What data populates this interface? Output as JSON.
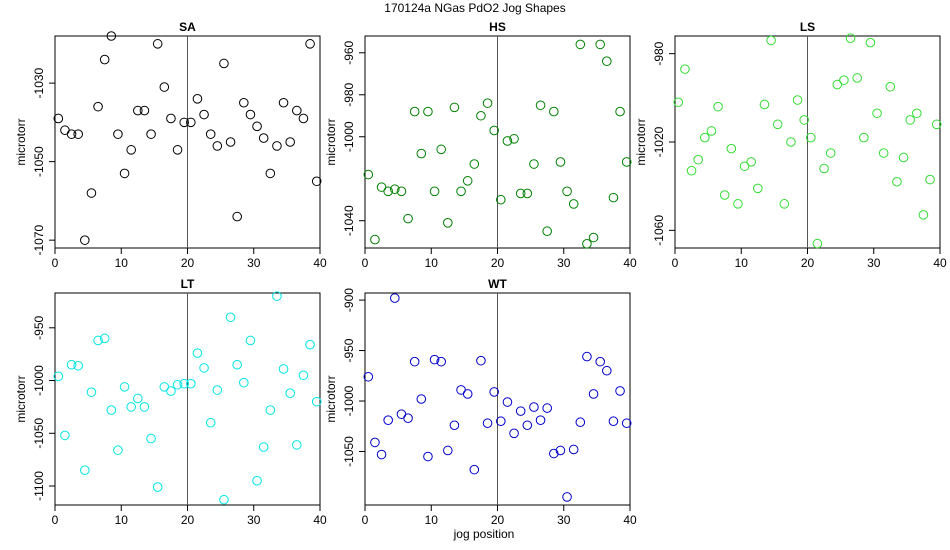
{
  "figure": {
    "title": "170124a   NGas PdO2 Jog Shapes",
    "xlabel": "jog position"
  },
  "chart_data": [
    {
      "type": "scatter",
      "title": "SA",
      "ylabel": "microtorr",
      "xlabel": "",
      "color": "#000000",
      "xlim": [
        0,
        40
      ],
      "ylim": [
        -1072,
        -1018
      ],
      "xticks": [
        0,
        10,
        20,
        30,
        40
      ],
      "yticks": [
        -1030,
        -1050,
        -1070
      ],
      "vline_x": 20,
      "x": [
        0.5,
        1.5,
        2.5,
        3.5,
        4.5,
        5.5,
        6.5,
        7.5,
        8.5,
        9.5,
        10.5,
        11.5,
        12.5,
        13.5,
        14.5,
        15.5,
        16.5,
        17.5,
        18.5,
        19.5,
        20.5,
        21.5,
        22.5,
        23.5,
        24.5,
        25.5,
        26.5,
        27.5,
        28.5,
        29.5,
        30.5,
        31.5,
        32.5,
        33.5,
        34.5,
        35.5,
        36.5,
        37.5,
        38.5,
        39.5
      ],
      "y": [
        -1039,
        -1042,
        -1043,
        -1043,
        -1070,
        -1058,
        -1036,
        -1024,
        -1018,
        -1043,
        -1053,
        -1047,
        -1037,
        -1037,
        -1043,
        -1020,
        -1031,
        -1039,
        -1047,
        -1040,
        -1040,
        -1034,
        -1038,
        -1043,
        -1046,
        -1025,
        -1045,
        -1064,
        -1035,
        -1038,
        -1041,
        -1044,
        -1053,
        -1046,
        -1035,
        -1045,
        -1037,
        -1039,
        -1020,
        -1055
      ]
    },
    {
      "type": "scatter",
      "title": "HS",
      "ylabel": "microtorr",
      "xlabel": "",
      "color": "#008000",
      "xlim": [
        0,
        40
      ],
      "ylim": [
        -1053,
        -952
      ],
      "xticks": [
        0,
        10,
        20,
        30,
        40
      ],
      "yticks": [
        -960,
        -980,
        -1000,
        -1040
      ],
      "vline_x": 20,
      "x": [
        0.5,
        1.5,
        2.5,
        3.5,
        4.5,
        5.5,
        6.5,
        7.5,
        8.5,
        9.5,
        10.5,
        11.5,
        12.5,
        13.5,
        14.5,
        15.5,
        16.5,
        17.5,
        18.5,
        19.5,
        20.5,
        21.5,
        22.5,
        23.5,
        24.5,
        25.5,
        26.5,
        27.5,
        28.5,
        29.5,
        30.5,
        31.5,
        32.5,
        33.5,
        34.5,
        35.5,
        36.5,
        37.5,
        38.5,
        39.5
      ],
      "y": [
        -1018,
        -1049,
        -1024,
        -1026,
        -1025,
        -1026,
        -1039,
        -988,
        -1008,
        -988,
        -1026,
        -1006,
        -1041,
        -986,
        -1026,
        -1021,
        -1013,
        -990,
        -984,
        -997,
        -1030,
        -1002,
        -1001,
        -1027,
        -1027,
        -1013,
        -985,
        -1045,
        -988,
        -1012,
        -1026,
        -1032,
        -956,
        -1051,
        -1048,
        -956,
        -964,
        -1029,
        -988,
        -1012
      ]
    },
    {
      "type": "scatter",
      "title": "LS",
      "ylabel": "microtorr",
      "xlabel": "",
      "color": "#33dd33",
      "xlim": [
        0,
        40
      ],
      "ylim": [
        -1068,
        -972
      ],
      "xticks": [
        0,
        10,
        20,
        30,
        40
      ],
      "yticks": [
        -980,
        -1020,
        -1060
      ],
      "vline_x": 20,
      "x": [
        0.5,
        1.5,
        2.5,
        3.5,
        4.5,
        5.5,
        6.5,
        7.5,
        8.5,
        9.5,
        10.5,
        11.5,
        12.5,
        13.5,
        14.5,
        15.5,
        16.5,
        17.5,
        18.5,
        19.5,
        20.5,
        21.5,
        22.5,
        23.5,
        24.5,
        25.5,
        26.5,
        27.5,
        28.5,
        29.5,
        30.5,
        31.5,
        32.5,
        33.5,
        34.5,
        35.5,
        36.5,
        37.5,
        38.5,
        39.5
      ],
      "y": [
        -1002,
        -987,
        -1033,
        -1028,
        -1018,
        -1015,
        -1004,
        -1044,
        -1023,
        -1048,
        -1031,
        -1029,
        -1041,
        -1003,
        -974,
        -1012,
        -1048,
        -1020,
        -1001,
        -1010,
        -1018,
        -1066,
        -1032,
        -1025,
        -994,
        -992,
        -973,
        -991,
        -1018,
        -975,
        -1007,
        -1025,
        -995,
        -1038,
        -1027,
        -1010,
        -1007,
        -1053,
        -1037,
        -1012
      ]
    },
    {
      "type": "scatter",
      "title": "LT",
      "ylabel": "microtorr",
      "xlabel": "",
      "color": "#00e5e5",
      "xlim": [
        0,
        40
      ],
      "ylim": [
        -1118,
        -917
      ],
      "xticks": [
        0,
        10,
        20,
        30,
        40
      ],
      "yticks": [
        -950,
        -1000,
        -1050,
        -1100
      ],
      "vline_x": 20,
      "x": [
        0.5,
        1.5,
        2.5,
        3.5,
        4.5,
        5.5,
        6.5,
        7.5,
        8.5,
        9.5,
        10.5,
        11.5,
        12.5,
        13.5,
        14.5,
        15.5,
        16.5,
        17.5,
        18.5,
        19.5,
        20.5,
        21.5,
        22.5,
        23.5,
        24.5,
        25.5,
        26.5,
        27.5,
        28.5,
        29.5,
        30.5,
        31.5,
        32.5,
        33.5,
        34.5,
        35.5,
        36.5,
        37.5,
        38.5,
        39.5
      ],
      "y": [
        -996,
        -1052,
        -985,
        -986,
        -1085,
        -1011,
        -962,
        -960,
        -1028,
        -1066,
        -1006,
        -1025,
        -1017,
        -1025,
        -1055,
        -1101,
        -1006,
        -1010,
        -1004,
        -1003,
        -1003,
        -974,
        -988,
        -1040,
        -1009,
        -1113,
        -940,
        -985,
        -1002,
        -962,
        -1095,
        -1063,
        -1028,
        -920,
        -989,
        -1012,
        -1061,
        -995,
        -966,
        -1020
      ]
    },
    {
      "type": "scatter",
      "title": "WT",
      "ylabel": "microtorr",
      "xlabel": "",
      "color": "#0000cc",
      "xlim": [
        0,
        40
      ],
      "ylim": [
        -1103,
        -893
      ],
      "xticks": [
        0,
        10,
        20,
        30,
        40
      ],
      "yticks": [
        -900,
        -950,
        -1000,
        -1050
      ],
      "vline_x": 20,
      "x": [
        0.5,
        1.5,
        2.5,
        3.5,
        4.5,
        5.5,
        6.5,
        7.5,
        8.5,
        9.5,
        10.5,
        11.5,
        12.5,
        13.5,
        14.5,
        15.5,
        16.5,
        17.5,
        18.5,
        19.5,
        20.5,
        21.5,
        22.5,
        23.5,
        24.5,
        25.5,
        26.5,
        27.5,
        28.5,
        29.5,
        30.5,
        31.5,
        32.5,
        33.5,
        34.5,
        35.5,
        36.5,
        37.5,
        38.5,
        39.5
      ],
      "y": [
        -976,
        -1041,
        -1053,
        -1019,
        -898,
        -1013,
        -1017,
        -961,
        -998,
        -1055,
        -959,
        -961,
        -1049,
        -1024,
        -989,
        -993,
        -1068,
        -960,
        -1022,
        -991,
        -1020,
        -1001,
        -1032,
        -1010,
        -1024,
        -1006,
        -1019,
        -1007,
        -1052,
        -1049,
        -1095,
        -1048,
        -1021,
        -956,
        -993,
        -961,
        -970,
        -1020,
        -990,
        -1022
      ]
    }
  ]
}
